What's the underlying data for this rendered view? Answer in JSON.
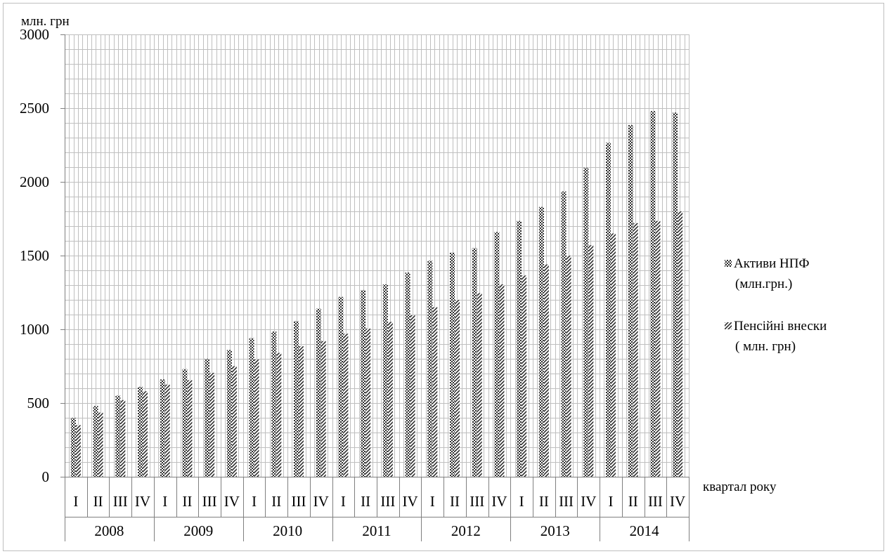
{
  "chart_data": {
    "type": "bar",
    "title": "",
    "ylabel": "млн. грн",
    "xlabel": "квартал року",
    "ylim": [
      0,
      3000
    ],
    "yticks": [
      0,
      500,
      1000,
      1500,
      2000,
      2500,
      3000
    ],
    "yminor_step": 100,
    "grid": true,
    "legend_position": "right",
    "quarters": [
      "I",
      "II",
      "III",
      "IV"
    ],
    "years": [
      "2008",
      "2009",
      "2010",
      "2011",
      "2012",
      "2013",
      "2014"
    ],
    "series": [
      {
        "name": "Активи НПФ (млн.грн.)",
        "legend_lines": [
          "Активи НПФ",
          "(млн.грн.)"
        ],
        "pattern": "checker",
        "values": [
          400,
          480,
          550,
          610,
          660,
          730,
          800,
          860,
          940,
          985,
          1055,
          1140,
          1220,
          1265,
          1305,
          1385,
          1465,
          1520,
          1550,
          1660,
          1735,
          1830,
          1935,
          2095,
          2265,
          2385,
          2480,
          2470
        ]
      },
      {
        "name": "Пенсійні внески ( млн. грн)",
        "legend_lines": [
          "Пенсійні внески",
          "( млн. грн)"
        ],
        "pattern": "diagonal",
        "values": [
          350,
          435,
          520,
          580,
          625,
          655,
          705,
          750,
          795,
          840,
          885,
          920,
          970,
          1005,
          1050,
          1095,
          1150,
          1200,
          1245,
          1305,
          1365,
          1440,
          1500,
          1570,
          1650,
          1720,
          1735,
          1800
        ]
      }
    ],
    "colors": {
      "grid": "#bfbfbf",
      "axis": "#7f7f7f",
      "bar": "#3a3a3a"
    }
  }
}
